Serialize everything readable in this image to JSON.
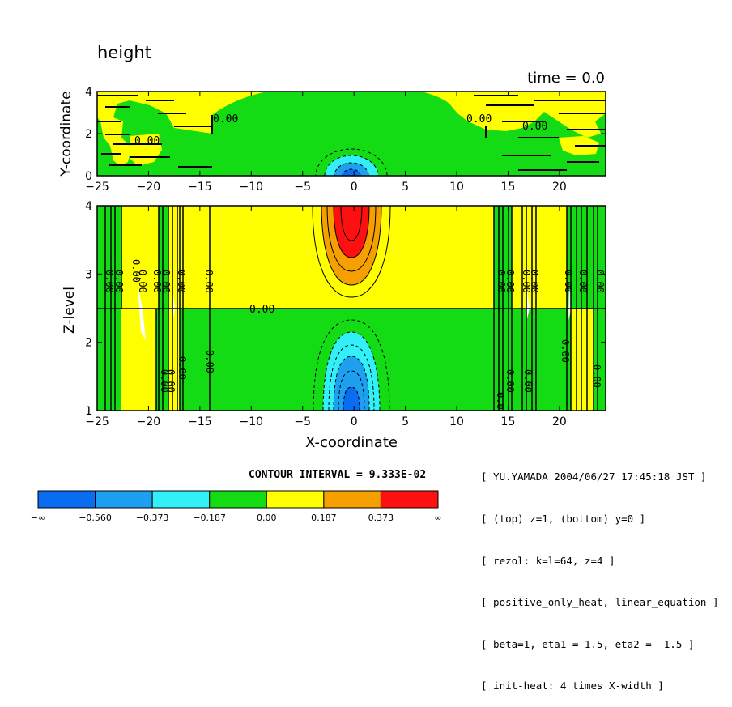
{
  "chart_data": [
    {
      "type": "contour",
      "name": "top panel (z=1)",
      "variable": "height",
      "time_label": "time = 0.0",
      "xlabel": "X-coordinate",
      "ylabel": "Y-coordinate",
      "xlim": [
        -25,
        24.5
      ],
      "ylim": [
        0,
        4
      ],
      "xticks": [
        -25,
        -20,
        -15,
        -10,
        -5,
        0,
        5,
        10,
        15,
        20
      ],
      "yticks": [
        0,
        2,
        4
      ],
      "contour_labels": [
        "0.00",
        "0.00",
        "0.00",
        "0.00"
      ]
    },
    {
      "type": "contour",
      "name": "bottom panel (y=0)",
      "variable": "height",
      "xlabel": "X-coordinate",
      "ylabel": "Z-level",
      "xlim": [
        -25,
        24.5
      ],
      "ylim": [
        1,
        4
      ],
      "xticks": [
        -25,
        -20,
        -15,
        -10,
        -5,
        0,
        5,
        10,
        15,
        20
      ],
      "yticks": [
        1,
        2,
        3,
        4
      ],
      "zero_line_z": 2.5,
      "contour_labels": [
        "0.00"
      ],
      "positive_max_center": {
        "x": 0,
        "z": 4
      },
      "negative_min_center": {
        "x": 0,
        "z": 1
      }
    }
  ],
  "title": "height",
  "time_label": "time = 0.0",
  "contour_interval_label": "CONTOUR INTERVAL = 9.333E-02",
  "colorbar": {
    "levels": [
      "-∞",
      "-0.560",
      "-0.373",
      "-0.187",
      "0.00",
      "0.187",
      "0.373",
      "∞"
    ],
    "colors": [
      "#0a6cf0",
      "#1ea0f0",
      "#32f0f8",
      "#14dc14",
      "#ffff00",
      "#f5a000",
      "#ff1010"
    ]
  },
  "metadata_lines": [
    "[ YU.YAMADA 2004/06/27 17:45:18 JST ]",
    "[ (top) z=1, (bottom) y=0 ]",
    "[ rezol: k=l=64, z=4 ]",
    "[ positive_only_heat, linear_equation ]",
    "[ beta=1, eta1 = 1.5, eta2 = -1.5 ]",
    "[ init-heat: 4 times X-width ]"
  ]
}
